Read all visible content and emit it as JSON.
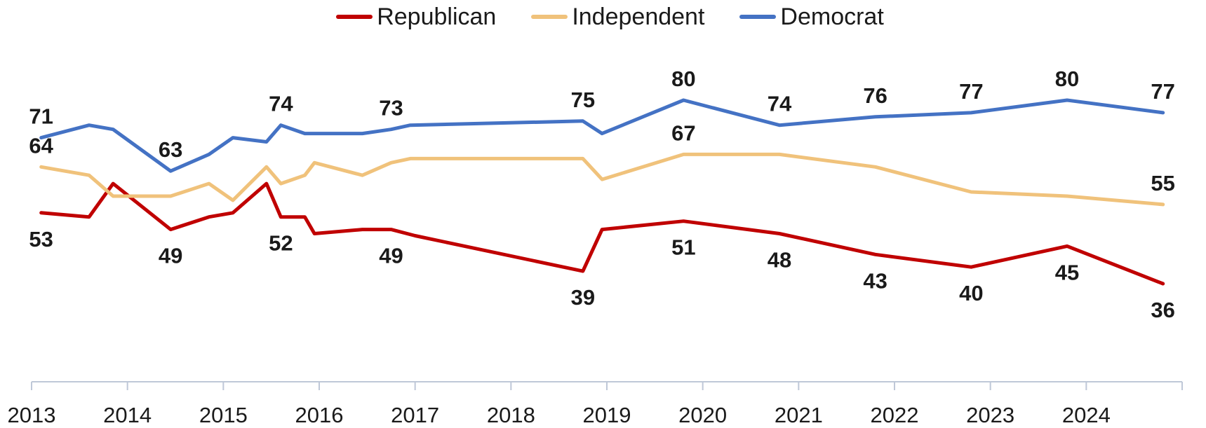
{
  "chart_data": {
    "type": "line",
    "title": "",
    "xlabel": "",
    "ylabel": "",
    "xlim": [
      2013,
      2025
    ],
    "ylim": [
      20,
      95
    ],
    "grid": false,
    "legend_position": "top-center",
    "x_ticks": [
      "2013",
      "2014",
      "2015",
      "2016",
      "2017",
      "2018",
      "2019",
      "2020",
      "2021",
      "2022",
      "2023",
      "2024"
    ],
    "series": [
      {
        "name": "Republican",
        "color": "#c00000",
        "points": [
          [
            2013.1,
            53
          ],
          [
            2013.6,
            52
          ],
          [
            2013.85,
            60
          ],
          [
            2014.45,
            49
          ],
          [
            2014.85,
            52
          ],
          [
            2015.1,
            53
          ],
          [
            2015.45,
            60
          ],
          [
            2015.6,
            52
          ],
          [
            2015.85,
            52
          ],
          [
            2015.95,
            48
          ],
          [
            2016.45,
            49
          ],
          [
            2016.75,
            49
          ],
          [
            2017.0,
            47.5
          ],
          [
            2018.75,
            39
          ],
          [
            2018.95,
            49
          ],
          [
            2019.8,
            51
          ],
          [
            2020.8,
            48
          ],
          [
            2021.8,
            43
          ],
          [
            2022.8,
            40
          ],
          [
            2023.8,
            45
          ],
          [
            2024.8,
            36
          ]
        ],
        "labels": [
          {
            "x": 2013.1,
            "text": "53",
            "pos": "below"
          },
          {
            "x": 2014.45,
            "text": "49",
            "pos": "below"
          },
          {
            "x": 2015.6,
            "text": "52",
            "pos": "below"
          },
          {
            "x": 2016.75,
            "text": "49",
            "pos": "below"
          },
          {
            "x": 2018.75,
            "text": "39",
            "pos": "below"
          },
          {
            "x": 2019.8,
            "text": "51",
            "pos": "below"
          },
          {
            "x": 2020.8,
            "text": "48",
            "pos": "below"
          },
          {
            "x": 2021.8,
            "text": "43",
            "pos": "below"
          },
          {
            "x": 2022.8,
            "text": "40",
            "pos": "below"
          },
          {
            "x": 2023.8,
            "text": "45",
            "pos": "below"
          },
          {
            "x": 2024.8,
            "text": "36",
            "pos": "below"
          }
        ]
      },
      {
        "name": "Independent",
        "color": "#f0c27b",
        "points": [
          [
            2013.1,
            64
          ],
          [
            2013.6,
            62
          ],
          [
            2013.85,
            57
          ],
          [
            2014.45,
            57
          ],
          [
            2014.85,
            60
          ],
          [
            2015.1,
            56
          ],
          [
            2015.45,
            64
          ],
          [
            2015.6,
            60
          ],
          [
            2015.85,
            62
          ],
          [
            2015.95,
            65
          ],
          [
            2016.45,
            62
          ],
          [
            2016.75,
            65
          ],
          [
            2016.95,
            66
          ],
          [
            2018.75,
            66
          ],
          [
            2018.95,
            61
          ],
          [
            2019.8,
            67
          ],
          [
            2020.8,
            67
          ],
          [
            2021.8,
            64
          ],
          [
            2022.8,
            58
          ],
          [
            2023.8,
            57
          ],
          [
            2024.8,
            55
          ]
        ],
        "labels": [
          {
            "x": 2013.1,
            "text": "64",
            "pos": "above"
          },
          {
            "x": 2019.8,
            "text": "67",
            "pos": "above"
          },
          {
            "x": 2024.8,
            "text": "55",
            "pos": "above"
          }
        ]
      },
      {
        "name": "Democrat",
        "color": "#4472c4",
        "points": [
          [
            2013.1,
            71
          ],
          [
            2013.6,
            74
          ],
          [
            2013.85,
            73
          ],
          [
            2014.45,
            63
          ],
          [
            2014.85,
            67
          ],
          [
            2015.1,
            71
          ],
          [
            2015.45,
            70
          ],
          [
            2015.6,
            74
          ],
          [
            2015.85,
            72
          ],
          [
            2015.95,
            72
          ],
          [
            2016.45,
            72
          ],
          [
            2016.75,
            73
          ],
          [
            2016.95,
            74
          ],
          [
            2018.75,
            75
          ],
          [
            2018.95,
            72
          ],
          [
            2019.8,
            80
          ],
          [
            2020.8,
            74
          ],
          [
            2021.8,
            76
          ],
          [
            2022.8,
            77
          ],
          [
            2023.8,
            80
          ],
          [
            2024.8,
            77
          ]
        ],
        "labels": [
          {
            "x": 2013.1,
            "text": "71",
            "pos": "above"
          },
          {
            "x": 2014.45,
            "text": "63",
            "pos": "above"
          },
          {
            "x": 2015.6,
            "text": "74",
            "pos": "above"
          },
          {
            "x": 2016.75,
            "text": "73",
            "pos": "above"
          },
          {
            "x": 2018.75,
            "text": "75",
            "pos": "above"
          },
          {
            "x": 2019.8,
            "text": "80",
            "pos": "above"
          },
          {
            "x": 2020.8,
            "text": "74",
            "pos": "above"
          },
          {
            "x": 2021.8,
            "text": "76",
            "pos": "above"
          },
          {
            "x": 2022.8,
            "text": "77",
            "pos": "above"
          },
          {
            "x": 2023.8,
            "text": "80",
            "pos": "above"
          },
          {
            "x": 2024.8,
            "text": "77",
            "pos": "above"
          }
        ]
      }
    ]
  }
}
